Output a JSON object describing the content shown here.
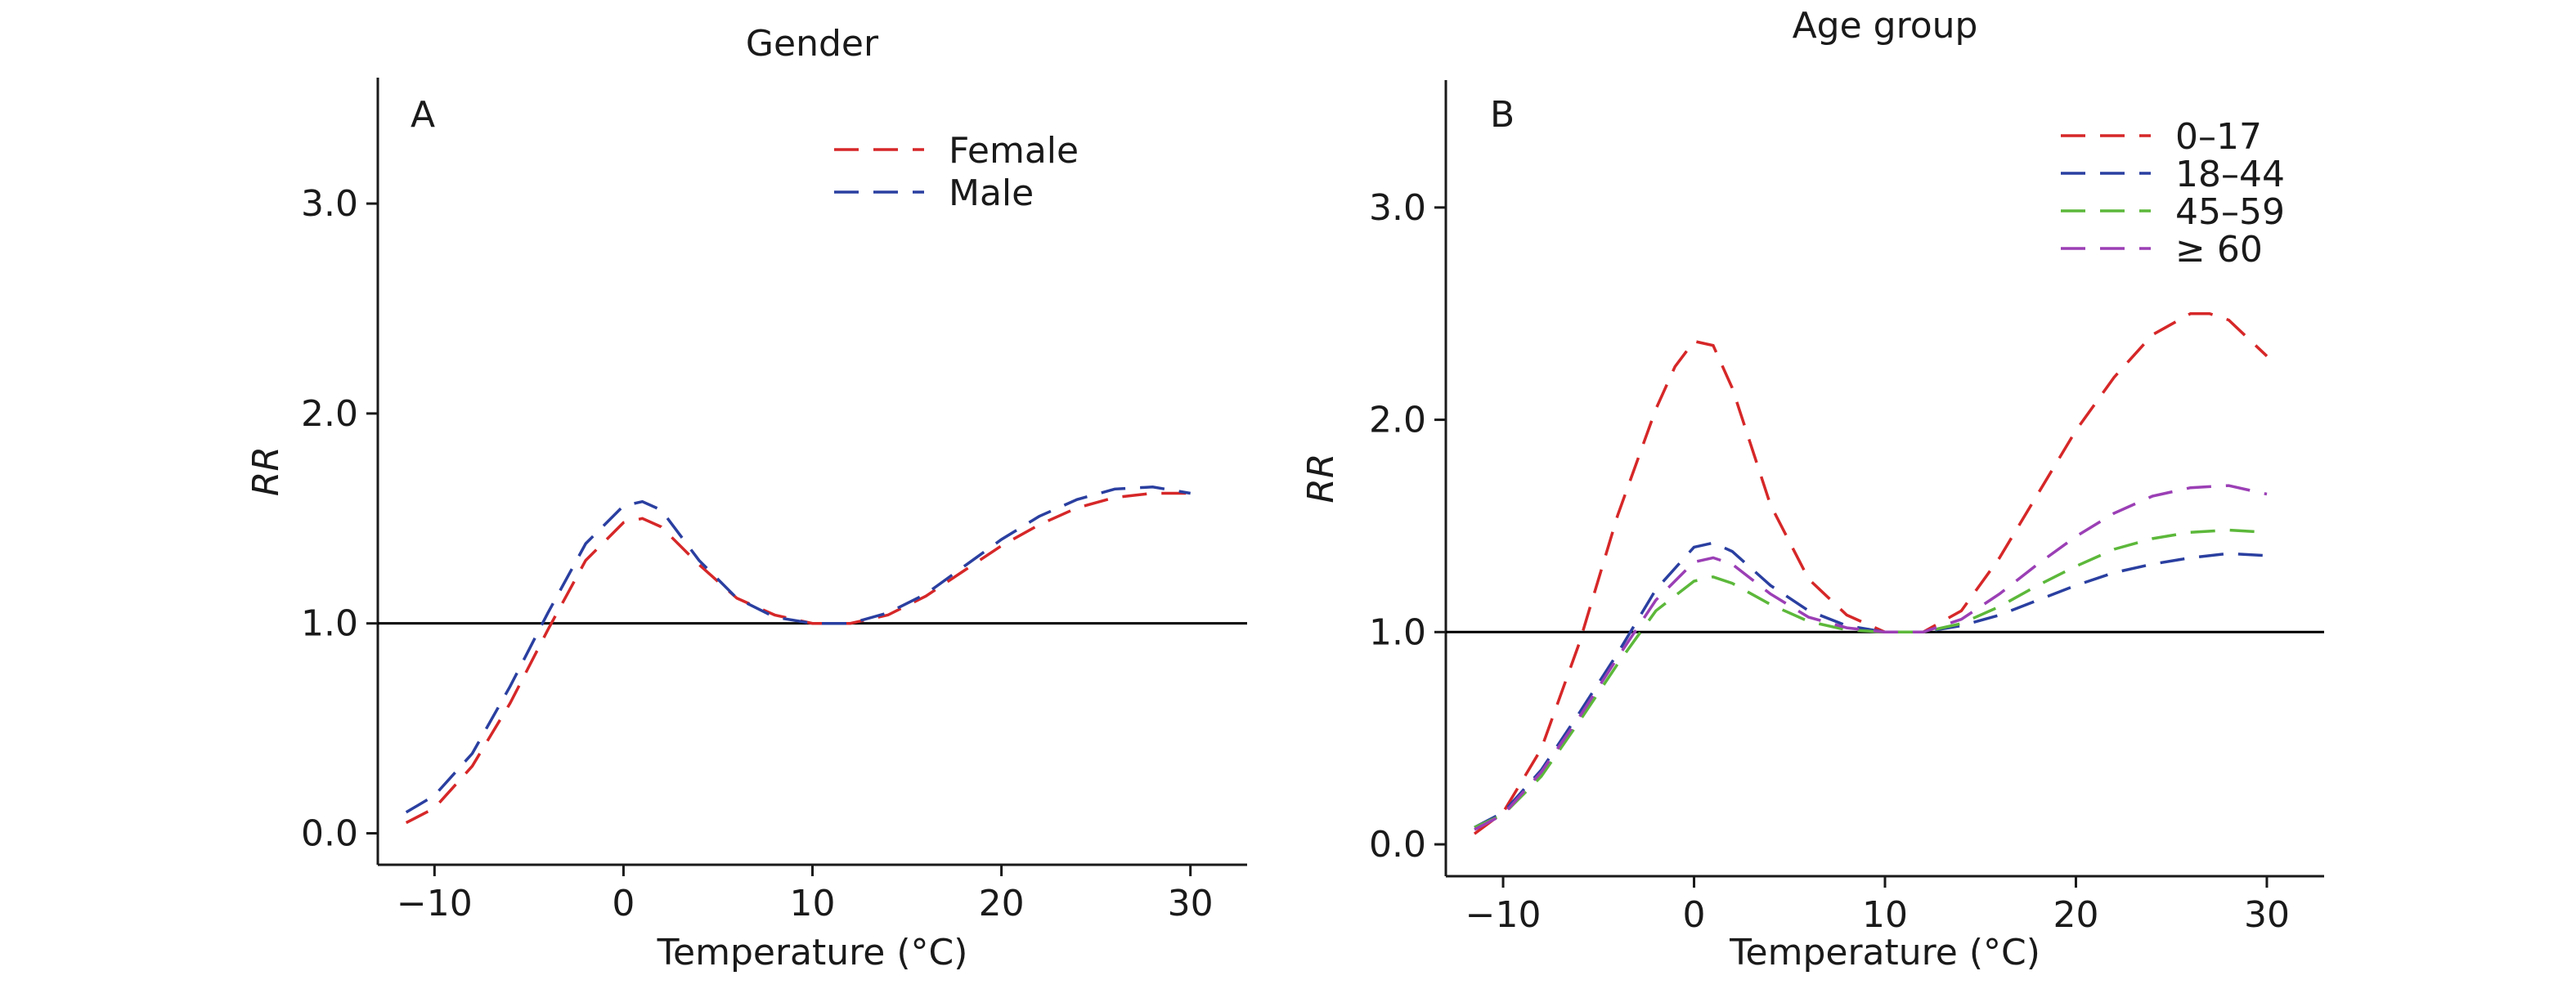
{
  "chart_data": [
    {
      "type": "line",
      "title": "Gender",
      "panel_label": "A",
      "xlabel": "Temperature (°C)",
      "ylabel": "RR",
      "xlim": [
        -13,
        33
      ],
      "ylim": [
        -0.15,
        3.6
      ],
      "xticks": [
        -10,
        0,
        10,
        20,
        30
      ],
      "xtick_labels": [
        "−10",
        "0",
        "10",
        "20",
        "30"
      ],
      "yticks": [
        0,
        1,
        2,
        3
      ],
      "ytick_labels": [
        "0.0",
        "1.0",
        "2.0",
        "3.0"
      ],
      "reference_line": 1.0,
      "grid": false,
      "legend_position": "top-right",
      "series": [
        {
          "name": "Female",
          "color": "#d62728",
          "x": [
            -11.5,
            -10,
            -8,
            -6,
            -4,
            -2,
            0,
            1,
            2,
            4,
            6,
            8,
            10,
            12,
            14,
            16,
            18,
            20,
            22,
            24,
            26,
            28,
            30
          ],
          "y": [
            0.05,
            0.12,
            0.32,
            0.62,
            0.97,
            1.3,
            1.48,
            1.5,
            1.46,
            1.28,
            1.12,
            1.04,
            1.0,
            1.0,
            1.04,
            1.13,
            1.25,
            1.37,
            1.47,
            1.55,
            1.6,
            1.62,
            1.62
          ]
        },
        {
          "name": "Male",
          "color": "#2a3fa0",
          "x": [
            -11.5,
            -10,
            -8,
            -6,
            -4,
            -2,
            0,
            1,
            2,
            4,
            6,
            8,
            10,
            12,
            14,
            16,
            18,
            20,
            22,
            24,
            26,
            28,
            30
          ],
          "y": [
            0.1,
            0.18,
            0.38,
            0.7,
            1.05,
            1.38,
            1.56,
            1.58,
            1.54,
            1.3,
            1.12,
            1.03,
            1.0,
            1.0,
            1.05,
            1.14,
            1.27,
            1.4,
            1.51,
            1.59,
            1.64,
            1.65,
            1.62
          ]
        }
      ]
    },
    {
      "type": "line",
      "title": "Age group",
      "panel_label": "B",
      "xlabel": "Temperature (°C)",
      "ylabel": "RR",
      "xlim": [
        -13,
        33
      ],
      "ylim": [
        -0.15,
        3.6
      ],
      "xticks": [
        -10,
        0,
        10,
        20,
        30
      ],
      "xtick_labels": [
        "−10",
        "0",
        "10",
        "20",
        "30"
      ],
      "yticks": [
        0,
        1,
        2,
        3
      ],
      "ytick_labels": [
        "0.0",
        "1.0",
        "2.0",
        "3.0"
      ],
      "reference_line": 1.0,
      "grid": false,
      "legend_position": "top-right",
      "series": [
        {
          "name": "0–17",
          "color": "#d62728",
          "x": [
            -11.5,
            -10,
            -8,
            -6,
            -4,
            -2,
            -1,
            0,
            1,
            2,
            4,
            6,
            8,
            10,
            12,
            14,
            16,
            18,
            20,
            22,
            24,
            26,
            27,
            28,
            30
          ],
          "y": [
            0.05,
            0.15,
            0.45,
            0.95,
            1.55,
            2.05,
            2.25,
            2.37,
            2.35,
            2.15,
            1.6,
            1.25,
            1.08,
            1.0,
            1.0,
            1.1,
            1.35,
            1.65,
            1.95,
            2.2,
            2.4,
            2.5,
            2.5,
            2.47,
            2.3
          ]
        },
        {
          "name": "18–44",
          "color": "#2a3fa0",
          "x": [
            -11.5,
            -10,
            -8,
            -6,
            -4,
            -2,
            0,
            1,
            2,
            4,
            6,
            8,
            10,
            12,
            14,
            16,
            18,
            20,
            22,
            24,
            26,
            28,
            30
          ],
          "y": [
            0.08,
            0.15,
            0.35,
            0.62,
            0.9,
            1.2,
            1.4,
            1.42,
            1.38,
            1.22,
            1.1,
            1.03,
            1.0,
            1.0,
            1.03,
            1.08,
            1.15,
            1.22,
            1.28,
            1.32,
            1.35,
            1.37,
            1.36
          ]
        },
        {
          "name": "45–59",
          "color": "#5cb83a",
          "x": [
            -11.5,
            -10,
            -8,
            -6,
            -4,
            -2,
            0,
            1,
            2,
            4,
            6,
            8,
            10,
            12,
            14,
            16,
            18,
            20,
            22,
            24,
            26,
            28,
            30
          ],
          "y": [
            0.08,
            0.14,
            0.32,
            0.58,
            0.85,
            1.1,
            1.24,
            1.26,
            1.23,
            1.13,
            1.05,
            1.01,
            1.0,
            1.0,
            1.04,
            1.12,
            1.22,
            1.31,
            1.39,
            1.44,
            1.47,
            1.48,
            1.47
          ]
        },
        {
          "name": "≥ 60",
          "color": "#9b3fb5",
          "x": [
            -11.5,
            -10,
            -8,
            -6,
            -4,
            -2,
            0,
            1,
            2,
            4,
            6,
            8,
            10,
            12,
            14,
            16,
            18,
            20,
            22,
            24,
            26,
            28,
            30
          ],
          "y": [
            0.07,
            0.14,
            0.34,
            0.6,
            0.88,
            1.15,
            1.33,
            1.35,
            1.32,
            1.18,
            1.07,
            1.02,
            1.0,
            1.0,
            1.06,
            1.18,
            1.32,
            1.45,
            1.56,
            1.64,
            1.68,
            1.69,
            1.65
          ]
        }
      ]
    }
  ]
}
